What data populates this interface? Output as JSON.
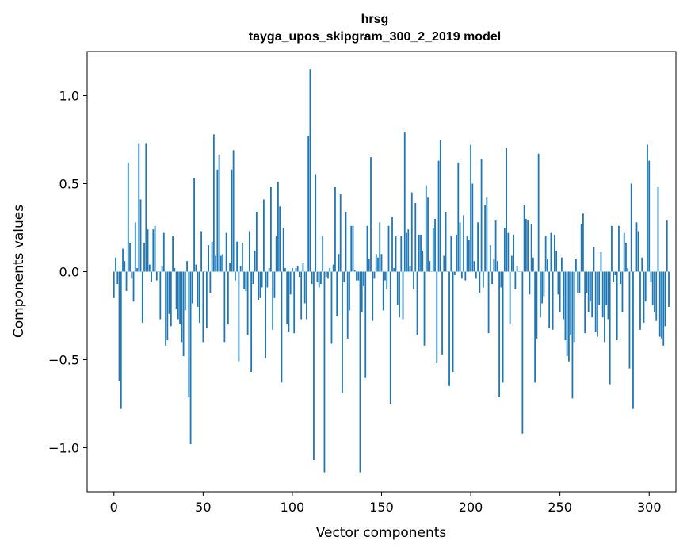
{
  "chart_data": {
    "type": "bar",
    "title": "hrsg",
    "subtitle": "tayga_upos_skipgram_300_2_2019 model",
    "xlabel": "Vector components",
    "ylabel": "Components values",
    "xlim": [
      -15,
      315
    ],
    "ylim": [
      -1.25,
      1.25
    ],
    "xticks": [
      0,
      50,
      100,
      150,
      200,
      250,
      300
    ],
    "xtick_labels": [
      "0",
      "50",
      "100",
      "150",
      "200",
      "250",
      "300"
    ],
    "yticks": [
      -1.0,
      -0.5,
      0.0,
      0.5,
      1.0
    ],
    "ytick_labels": [
      "−1.0",
      "−0.5",
      "0.0",
      "0.5",
      "1.0"
    ],
    "bar_color": "#1f77b4",
    "values": [
      -0.15,
      0.08,
      -0.07,
      -0.62,
      -0.78,
      0.13,
      0.06,
      -0.11,
      0.62,
      0.16,
      -0.04,
      -0.17,
      0.28,
      0.02,
      0.73,
      0.41,
      -0.29,
      0.16,
      0.73,
      0.24,
      0.04,
      -0.06,
      0.24,
      0.26,
      -0.05,
      0.0,
      -0.27,
      0.03,
      0.22,
      -0.42,
      -0.39,
      -0.24,
      -0.31,
      0.2,
      0.02,
      -0.21,
      -0.27,
      -0.3,
      -0.4,
      -0.48,
      -0.22,
      0.06,
      -0.71,
      -0.98,
      -0.18,
      0.53,
      0.04,
      -0.2,
      -0.29,
      0.23,
      -0.4,
      0.0,
      -0.32,
      0.15,
      -0.12,
      0.17,
      0.78,
      0.09,
      0.58,
      0.66,
      0.09,
      0.1,
      -0.4,
      0.22,
      -0.3,
      0.05,
      0.58,
      0.69,
      -0.05,
      0.17,
      -0.51,
      0.03,
      0.16,
      -0.1,
      -0.11,
      -0.36,
      0.23,
      -0.57,
      -0.07,
      0.12,
      0.34,
      -0.16,
      -0.15,
      -0.09,
      0.41,
      -0.49,
      -0.09,
      0.02,
      0.48,
      -0.33,
      -0.15,
      0.2,
      0.51,
      0.37,
      -0.63,
      0.25,
      0.02,
      -0.3,
      -0.34,
      -0.13,
      0.02,
      -0.35,
      0.02,
      0.03,
      -0.03,
      -0.27,
      0.05,
      -0.18,
      -0.27,
      0.77,
      1.15,
      -0.07,
      -1.07,
      0.55,
      -0.06,
      -0.09,
      -0.07,
      0.2,
      -1.14,
      -0.03,
      -0.04,
      0.02,
      -0.41,
      0.04,
      0.48,
      -0.25,
      0.1,
      0.44,
      -0.69,
      -0.06,
      0.34,
      -0.38,
      -0.22,
      0.26,
      0.26,
      0.01,
      -0.05,
      -0.05,
      -1.14,
      -0.23,
      -0.08,
      -0.6,
      0.26,
      0.07,
      0.65,
      -0.28,
      -0.04,
      0.1,
      0.08,
      0.28,
      0.1,
      -0.22,
      -0.05,
      -0.1,
      0.26,
      -0.75,
      0.31,
      0.02,
      0.2,
      -0.19,
      -0.26,
      0.2,
      -0.27,
      0.79,
      0.22,
      0.24,
      0.03,
      0.45,
      -0.1,
      0.39,
      -0.36,
      0.21,
      0.21,
      0.12,
      -0.42,
      0.49,
      0.42,
      0.06,
      0.0,
      0.25,
      0.3,
      -0.52,
      0.63,
      0.75,
      -0.47,
      0.09,
      0.34,
      0.0,
      -0.65,
      0.2,
      -0.57,
      -0.02,
      0.21,
      0.62,
      0.28,
      -0.04,
      0.32,
      -0.05,
      0.2,
      0.18,
      0.72,
      0.5,
      0.06,
      -0.04,
      0.28,
      -0.12,
      0.64,
      -0.09,
      0.38,
      0.42,
      -0.35,
      0.15,
      -0.07,
      0.07,
      0.29,
      0.06,
      -0.71,
      -0.09,
      -0.63,
      0.25,
      0.7,
      0.22,
      -0.3,
      0.09,
      0.21,
      -0.1,
      0.03,
      0.0,
      0.0,
      -0.92,
      0.38,
      0.3,
      0.29,
      -0.13,
      0.27,
      0.08,
      -0.63,
      -0.38,
      0.67,
      -0.26,
      -0.18,
      -0.14,
      0.2,
      0.07,
      -0.32,
      0.22,
      -0.33,
      0.21,
      0.12,
      -0.13,
      -0.23,
      0.08,
      -0.27,
      -0.39,
      -0.48,
      -0.51,
      -0.36,
      -0.72,
      -0.4,
      0.07,
      -0.12,
      -0.12,
      0.27,
      0.33,
      -0.35,
      -0.12,
      -0.23,
      -0.17,
      -0.26,
      0.14,
      -0.34,
      -0.37,
      -0.19,
      0.11,
      -0.26,
      -0.4,
      -0.19,
      -0.27,
      -0.64,
      0.26,
      -0.06,
      -0.02,
      -0.39,
      0.26,
      -0.07,
      -0.23,
      0.22,
      0.16,
      0.02,
      -0.55,
      0.5,
      -0.78,
      0.0,
      0.28,
      0.23,
      -0.33,
      0.08,
      -0.29,
      -0.17,
      0.72,
      0.63,
      -0.06,
      -0.19,
      -0.23,
      -0.28,
      0.48,
      -0.37,
      -0.38,
      -0.42,
      -0.31,
      0.29,
      -0.2
    ]
  }
}
